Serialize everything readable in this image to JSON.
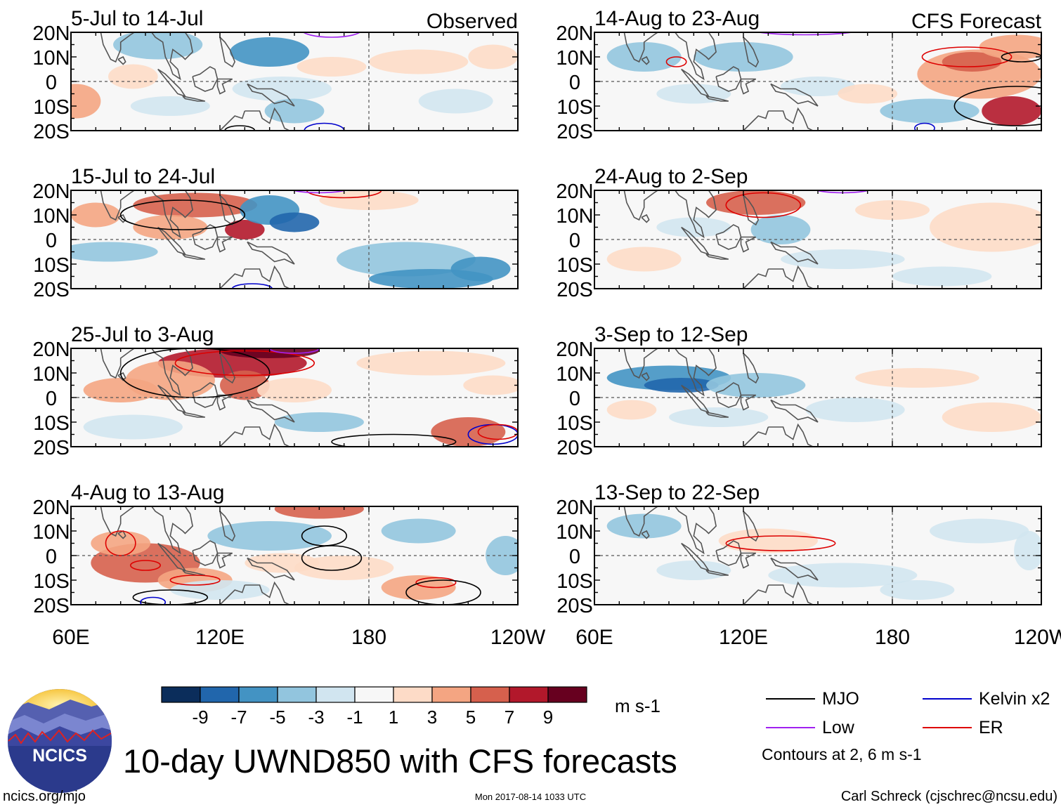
{
  "chart_data": {
    "type": "heatmap",
    "title": "10-day UWND850 with CFS forecasts",
    "variable": "UWND850",
    "units": "m s-1",
    "column_labels": [
      "Observed",
      "CFS Forecast"
    ],
    "lat_ticks": [
      "20N",
      "10N",
      "0",
      "10S",
      "20S"
    ],
    "lon_ticks": [
      "60E",
      "120E",
      "180",
      "120W"
    ],
    "lat_range": [
      -20,
      20
    ],
    "lon_range": [
      60,
      240
    ],
    "colorbar": {
      "levels": [
        "-9",
        "-7",
        "-5",
        "-3",
        "-1",
        "1",
        "3",
        "5",
        "7",
        "9"
      ],
      "colors": [
        "#0b2d5b",
        "#2166ac",
        "#4393c3",
        "#92c5de",
        "#d1e5f0",
        "#f7f7f7",
        "#fddbc7",
        "#f4a582",
        "#d6604d",
        "#b2182b",
        "#67001f"
      ]
    },
    "panels": [
      {
        "period": "5-Jul to 14-Jul",
        "source": "Observed"
      },
      {
        "period": "15-Jul to 24-Jul",
        "source": "Observed"
      },
      {
        "period": "25-Jul to 3-Aug",
        "source": "Observed"
      },
      {
        "period": "4-Aug to 13-Aug",
        "source": "Observed"
      },
      {
        "period": "14-Aug to 23-Aug",
        "source": "CFS Forecast"
      },
      {
        "period": "24-Aug to 2-Sep",
        "source": "CFS Forecast"
      },
      {
        "period": "3-Sep to 12-Sep",
        "source": "CFS Forecast"
      },
      {
        "period": "13-Sep to 22-Sep",
        "source": "CFS Forecast"
      }
    ],
    "legend": [
      {
        "label": "MJO",
        "color": "#000000"
      },
      {
        "label": "Kelvin x2",
        "color": "#0000cc"
      },
      {
        "label": "Low",
        "color": "#a020f0"
      },
      {
        "label": "ER",
        "color": "#dd0000"
      }
    ],
    "contour_note": "Contours at 2, 6 m s-1"
  },
  "footer": {
    "logo_text": "NCICS",
    "url": "ncics.org/mjo",
    "timestamp": "Mon 2017-08-14 1033 UTC",
    "credit": "Carl Schreck (cjschrec@ncsu.edu)"
  }
}
